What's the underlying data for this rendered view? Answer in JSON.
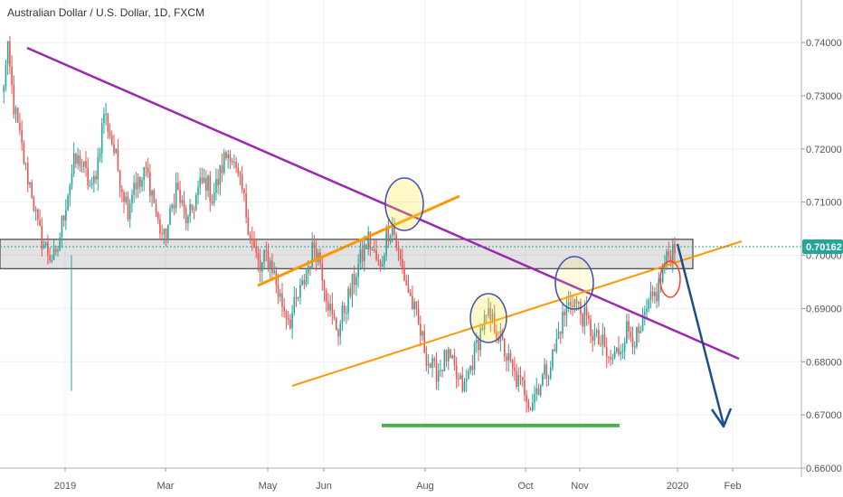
{
  "chart_data": {
    "type": "candlestick",
    "title": "Australian Dollar / U.S. Dollar, 1D, FXCM",
    "last_price": 0.70162,
    "last_price_label": "0.70162",
    "ylim": [
      0.66,
      0.748
    ],
    "y_ticks": [
      {
        "value": 0.74,
        "label": "0.74000"
      },
      {
        "value": 0.73,
        "label": "0.73000"
      },
      {
        "value": 0.72,
        "label": "0.72000"
      },
      {
        "value": 0.71,
        "label": "0.71000"
      },
      {
        "value": 0.7,
        "label": "0.70000"
      },
      {
        "value": 0.69,
        "label": "0.69000"
      },
      {
        "value": 0.68,
        "label": "0.68000"
      },
      {
        "value": 0.67,
        "label": "0.67000"
      },
      {
        "value": 0.66,
        "label": "0.66000"
      }
    ],
    "x_ticks": [
      "2019",
      "Mar",
      "May",
      "Jun",
      "Aug",
      "Oct",
      "Nov",
      "2020",
      "Feb"
    ],
    "price_path": [
      0.73,
      0.738,
      0.728,
      0.722,
      0.716,
      0.712,
      0.705,
      0.702,
      0.7,
      0.699,
      0.706,
      0.712,
      0.717,
      0.718,
      0.715,
      0.712,
      0.718,
      0.727,
      0.723,
      0.718,
      0.713,
      0.709,
      0.714,
      0.713,
      0.716,
      0.712,
      0.706,
      0.703,
      0.707,
      0.713,
      0.709,
      0.706,
      0.71,
      0.713,
      0.714,
      0.711,
      0.714,
      0.718,
      0.72,
      0.715,
      0.712,
      0.706,
      0.701,
      0.697,
      0.7,
      0.698,
      0.693,
      0.69,
      0.688,
      0.691,
      0.694,
      0.698,
      0.702,
      0.699,
      0.693,
      0.688,
      0.686,
      0.69,
      0.693,
      0.697,
      0.7,
      0.703,
      0.7,
      0.697,
      0.704,
      0.706,
      0.7,
      0.696,
      0.692,
      0.688,
      0.684,
      0.68,
      0.678,
      0.679,
      0.681,
      0.679,
      0.676,
      0.675,
      0.679,
      0.683,
      0.687,
      0.688,
      0.687,
      0.684,
      0.681,
      0.678,
      0.676,
      0.675,
      0.672,
      0.675,
      0.677,
      0.679,
      0.682,
      0.687,
      0.69,
      0.692,
      0.69,
      0.688,
      0.686,
      0.684,
      0.683,
      0.68,
      0.681,
      0.683,
      0.686,
      0.685,
      0.684,
      0.688,
      0.691,
      0.693,
      0.697,
      0.7,
      0.702
    ],
    "horizontal_zone": {
      "low": 0.6975,
      "high": 0.703
    },
    "support_level": 0.668
  }
}
